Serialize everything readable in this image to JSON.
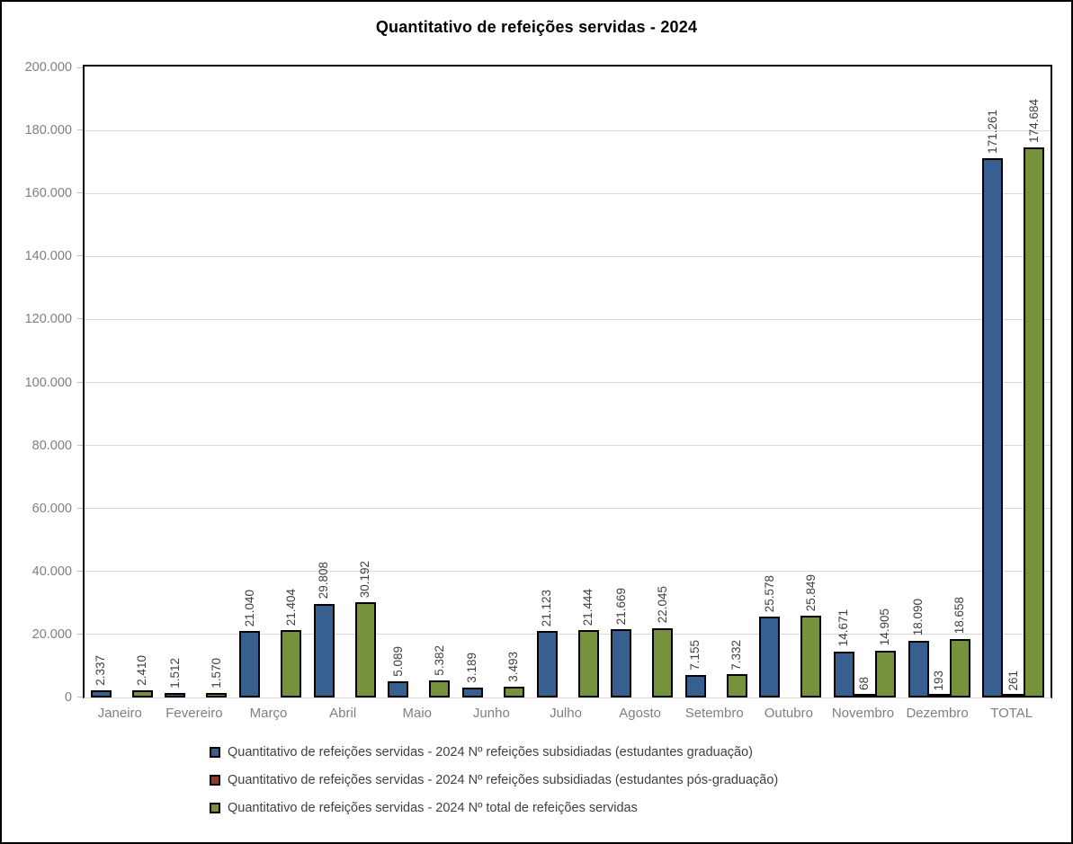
{
  "chart_data": {
    "type": "bar",
    "title": "Quantitativo de refeições servidas - 2024",
    "categories": [
      "Janeiro",
      "Fevereiro",
      "Março",
      "Abril",
      "Maio",
      "Junho",
      "Julho",
      "Agosto",
      "Setembro",
      "Outubro",
      "Novembro",
      "Dezembro",
      "TOTAL"
    ],
    "series": [
      {
        "name": "Quantitativo de refeições servidas - 2024 Nº refeições subsidiadas (estudantes graduação)",
        "color": "#376091",
        "values": [
          2337,
          1512,
          21040,
          29808,
          5089,
          3189,
          21123,
          21669,
          7155,
          25578,
          14671,
          18090,
          171261
        ],
        "labels": [
          "2.337",
          "1.512",
          "21.040",
          "29.808",
          "5.089",
          "3.189",
          "21.123",
          "21.669",
          "7.155",
          "25.578",
          "14.671",
          "18.090",
          "171.261"
        ]
      },
      {
        "name": "Quantitativo de refeições servidas - 2024 Nº refeições subsidiadas (estudantes pós-graduação)",
        "color": "#953735",
        "values": [
          0,
          0,
          0,
          0,
          0,
          0,
          0,
          0,
          0,
          0,
          68,
          193,
          261
        ],
        "labels": [
          "",
          "",
          "",
          "",
          "",
          "",
          "",
          "",
          "",
          "",
          "68",
          "193",
          "261"
        ]
      },
      {
        "name": "Quantitativo de refeições servidas - 2024 Nº total de refeições servidas",
        "color": "#76923C",
        "values": [
          2410,
          1570,
          21404,
          30192,
          5382,
          3493,
          21444,
          22045,
          7332,
          25849,
          14905,
          18658,
          174684
        ],
        "labels": [
          "2.410",
          "1.570",
          "21.404",
          "30.192",
          "5.382",
          "3.493",
          "21.444",
          "22.045",
          "7.332",
          "25.849",
          "14.905",
          "18.658",
          "174.684"
        ]
      }
    ],
    "xlabel": "",
    "ylabel": "",
    "ylim": [
      0,
      200000
    ],
    "ytick_step": 20000,
    "ytick_labels": [
      "0",
      "20.000",
      "40.000",
      "60.000",
      "80.000",
      "100.000",
      "120.000",
      "140.000",
      "160.000",
      "180.000",
      "200.000"
    ],
    "grid": true,
    "legend_position": "bottom-left",
    "data_label_rotation": 90
  },
  "colors": {
    "series_graduacao": "#376091",
    "series_pos_graduacao": "#953735",
    "series_total": "#76923C",
    "gridline": "#D9D9D9",
    "axis_text": "#7F7F7F",
    "data_label_text": "#404040",
    "chart_border": "#000000",
    "background": "#FFFFFF"
  }
}
